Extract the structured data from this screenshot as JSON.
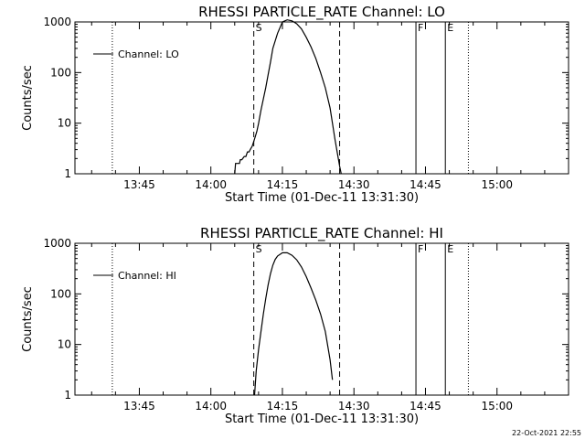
{
  "chart_data": [
    {
      "type": "line",
      "title": "RHESSI PARTICLE_RATE Channel: LO",
      "xlabel": "Start Time (01-Dec-11 13:31:30)",
      "ylabel": "Counts/sec",
      "yscale": "log",
      "ylim": [
        1,
        1000
      ],
      "yticks": [
        1,
        10,
        100,
        1000
      ],
      "yticklabels": [
        "1",
        "10",
        "100",
        "1000"
      ],
      "xticklabels": [
        "13:45",
        "14:00",
        "14:15",
        "14:30",
        "14:45",
        "15:00"
      ],
      "xlim": [
        "13:31:30",
        "15:15:00"
      ],
      "legend": {
        "position": "top-left",
        "entries": [
          "Channel: LO"
        ]
      },
      "series": [
        {
          "name": "Channel: LO",
          "x": [
            "14:05:00",
            "14:05:10",
            "14:05:30",
            "14:06:00",
            "14:06:10",
            "14:06:30",
            "14:07:00",
            "14:07:20",
            "14:07:40",
            "14:08:00",
            "14:08:20",
            "14:08:40",
            "14:09:00",
            "14:09:20",
            "14:09:40",
            "14:10:00",
            "14:10:30",
            "14:11:00",
            "14:11:30",
            "14:12:00",
            "14:12:30",
            "14:13:00",
            "14:14:00",
            "14:15:00",
            "14:16:00",
            "14:17:00",
            "14:18:00",
            "14:19:00",
            "14:20:00",
            "14:21:00",
            "14:22:00",
            "14:23:00",
            "14:24:00",
            "14:25:00",
            "14:25:30",
            "14:26:00",
            "14:26:30",
            "14:27:00",
            "14:27:20"
          ],
          "values": [
            1,
            1.6,
            1.6,
            1.6,
            1.9,
            1.9,
            2.2,
            2.2,
            2.7,
            2.7,
            3.1,
            3.5,
            4.4,
            5.5,
            7,
            10,
            18,
            30,
            50,
            90,
            160,
            300,
            600,
            1000,
            1100,
            1050,
            920,
            730,
            500,
            320,
            190,
            100,
            50,
            20,
            10,
            5,
            2.6,
            1.4,
            1
          ]
        }
      ],
      "vlines_dotted": [
        "13:39:20",
        "14:54:00"
      ],
      "vlines_dashed": [
        {
          "x": "14:09:00",
          "label": "S"
        },
        {
          "x": "14:27:00",
          "label": ""
        }
      ],
      "vlines_solid": [
        {
          "x": "14:43:00",
          "label": "F"
        },
        {
          "x": "14:49:10",
          "label": "E"
        }
      ]
    },
    {
      "type": "line",
      "title": "RHESSI PARTICLE_RATE Channel: HI",
      "xlabel": "Start Time (01-Dec-11 13:31:30)",
      "ylabel": "Counts/sec",
      "yscale": "log",
      "ylim": [
        1,
        1000
      ],
      "yticks": [
        1,
        10,
        100,
        1000
      ],
      "yticklabels": [
        "1",
        "10",
        "100",
        "1000"
      ],
      "xticklabels": [
        "13:45",
        "14:00",
        "14:15",
        "14:30",
        "14:45",
        "15:00"
      ],
      "xlim": [
        "13:31:30",
        "15:15:00"
      ],
      "legend": {
        "position": "top-left",
        "entries": [
          "Channel: HI"
        ]
      },
      "series": [
        {
          "name": "Channel: HI",
          "x": [
            "14:09:10",
            "14:09:30",
            "14:10:00",
            "14:10:30",
            "14:11:00",
            "14:11:30",
            "14:12:00",
            "14:12:30",
            "14:13:00",
            "14:13:30",
            "14:14:00",
            "14:15:00",
            "14:16:00",
            "14:17:00",
            "14:18:00",
            "14:19:00",
            "14:20:00",
            "14:21:00",
            "14:22:00",
            "14:23:00",
            "14:24:00",
            "14:25:00",
            "14:25:30"
          ],
          "values": [
            1,
            3,
            8,
            18,
            40,
            80,
            150,
            250,
            370,
            480,
            560,
            650,
            650,
            580,
            470,
            340,
            220,
            130,
            75,
            40,
            18,
            5,
            2
          ]
        }
      ],
      "vlines_dotted": [
        "13:39:20",
        "14:54:00"
      ],
      "vlines_dashed": [
        {
          "x": "14:09:00",
          "label": "S"
        },
        {
          "x": "14:27:00",
          "label": ""
        }
      ],
      "vlines_solid": [
        {
          "x": "14:43:00",
          "label": "F"
        },
        {
          "x": "14:49:10",
          "label": "E"
        }
      ]
    }
  ],
  "footer": {
    "timestamp": "22-Oct-2021 22:55"
  }
}
